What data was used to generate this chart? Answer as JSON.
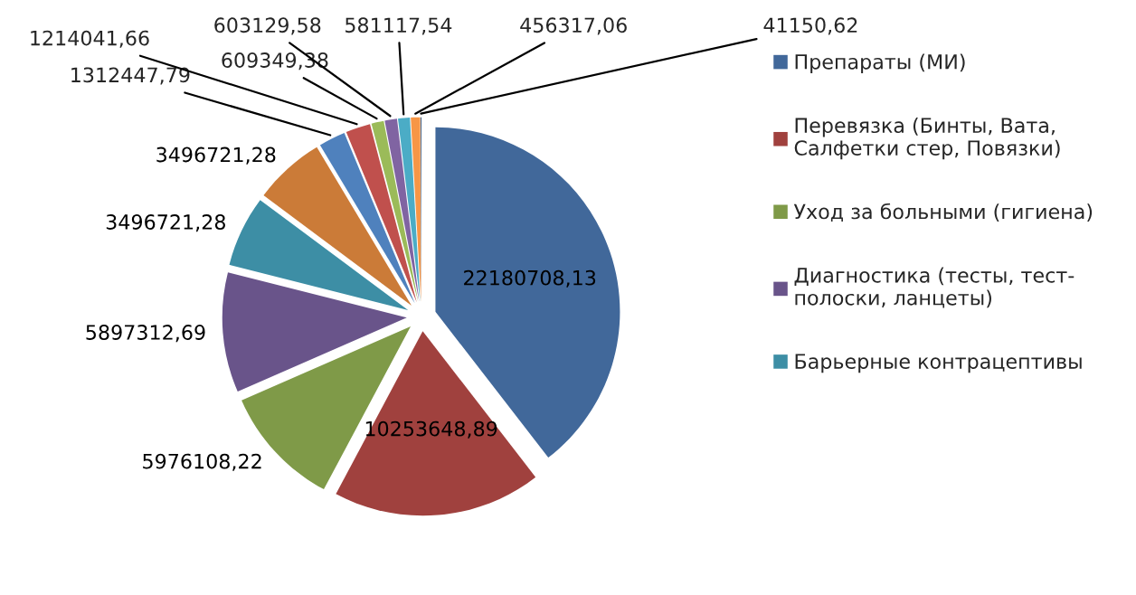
{
  "chart_data": {
    "type": "pie",
    "categories": [
      "Препараты (МИ)",
      "Перевязка (Бинты, Вата,\nСалфетки стер, Повязки)",
      "Уход за больными (гигиена)",
      "Диагностика (тесты, тест-\nполоски, ланцеты)",
      "Барьерные контрацептивы",
      null,
      null,
      null,
      null,
      null,
      null,
      null,
      null
    ],
    "values": [
      22180708.13,
      10253648.89,
      5976108.22,
      5897312.69,
      3496721.28,
      3496721.28,
      1312447.79,
      1214041.66,
      609349.38,
      603129.58,
      581117.54,
      456317.06,
      41150.62
    ],
    "colors": [
      "#41689a",
      "#a0413e",
      "#7f9a48",
      "#69548a",
      "#3d8ea5",
      "#cb7b38",
      "#4f81bd",
      "#c0504d",
      "#9bbb59",
      "#8064a2",
      "#4bacc6",
      "#f79646",
      "#2c4d75"
    ],
    "value_labels": [
      "22180708,13",
      "10253648,89",
      "5976108,22",
      "5897312,69",
      "3496721,28",
      "3496721,28",
      "1312447,79",
      "1214041,66",
      "609349,38",
      "603129,58",
      "581117,54",
      "456317,06",
      "41150,62"
    ],
    "legend": "right"
  }
}
